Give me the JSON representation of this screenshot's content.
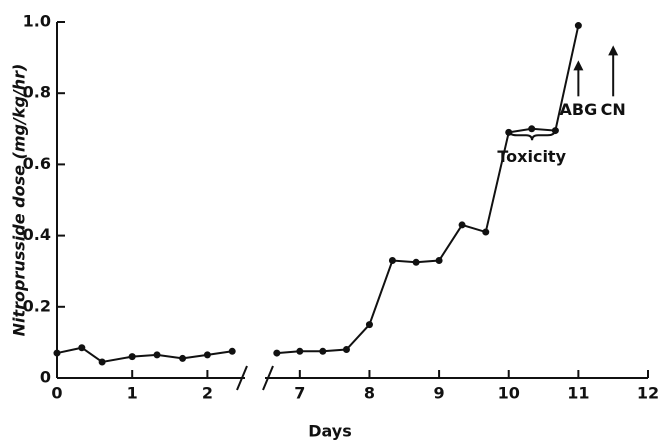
{
  "chart_data": {
    "type": "line",
    "xlabel": "Days",
    "ylabel": "Nitroprusside dose (mg/kg/hr)",
    "x": [
      0,
      0.33,
      0.6,
      1,
      1.33,
      1.67,
      2,
      2.33,
      6.67,
      7,
      7.33,
      7.67,
      8,
      8.33,
      8.67,
      9,
      9.33,
      9.67,
      10,
      10.33,
      10.67,
      11
    ],
    "values": [
      0.07,
      0.085,
      0.045,
      0.06,
      0.065,
      0.055,
      0.065,
      0.075,
      0.07,
      0.075,
      0.075,
      0.08,
      0.15,
      0.33,
      0.325,
      0.33,
      0.43,
      0.41,
      0.69,
      0.7,
      0.695,
      0.99
    ],
    "color": "#111111",
    "xlim": [
      0,
      12
    ],
    "axis_break": [
      2.5,
      6.5
    ],
    "xticks": [
      0,
      1,
      2,
      7,
      8,
      9,
      10,
      11,
      12
    ],
    "ylim": [
      0,
      1
    ],
    "yticks": [
      0,
      0.2,
      0.4,
      0.6,
      0.8,
      {
        "value": 1,
        "label": "1.0"
      }
    ],
    "annotations": [
      {
        "text": "ABG",
        "x": 11,
        "y": 0.78
      },
      {
        "text": "CN",
        "x": 11.5,
        "y": 0.78
      },
      {
        "text": "Toxicity",
        "x": 10.33,
        "y": 0.62,
        "from": 10,
        "to": 10.67
      }
    ]
  }
}
